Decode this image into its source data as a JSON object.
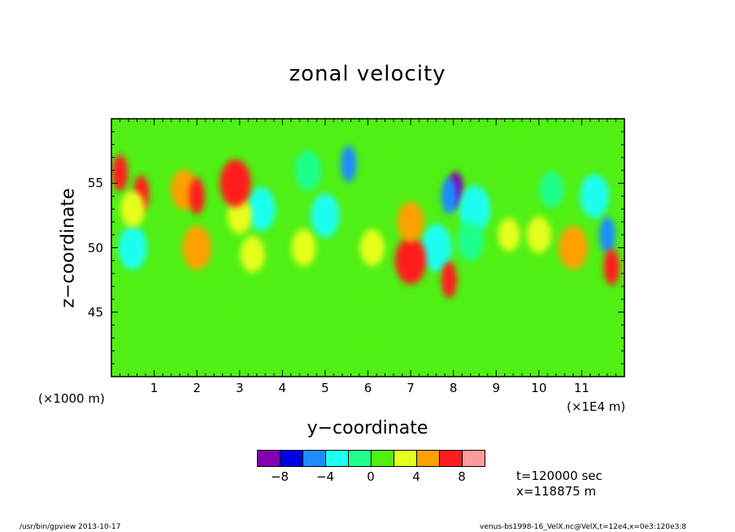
{
  "chart_data": {
    "type": "heatmap",
    "title": "zonal velocity",
    "xlabel": "y−coordinate",
    "ylabel": "z−coordinate",
    "x_unit_left": "(×1000 m)",
    "x_unit_right": "(×1E4 m)",
    "xlim": [
      0,
      12
    ],
    "ylim": [
      40,
      60
    ],
    "xticks": [
      "1",
      "2",
      "3",
      "4",
      "5",
      "6",
      "7",
      "8",
      "9",
      "10",
      "11"
    ],
    "yticks": [
      "45",
      "50",
      "55"
    ],
    "background_value": 1,
    "colorbar": {
      "levels": [
        -10,
        -8,
        -6,
        -4,
        -2,
        0,
        2,
        4,
        6,
        8,
        10
      ],
      "colors": [
        "#8000b0",
        "#0000e6",
        "#1e8cff",
        "#1efff0",
        "#1eff8c",
        "#50f014",
        "#e6ff1e",
        "#ffa000",
        "#ff1e1e",
        "#ff9b9b"
      ],
      "labels": [
        "−8",
        "−4",
        "0",
        "4",
        "8"
      ]
    },
    "features": [
      {
        "y": 5.55,
        "z": 56.5,
        "value": -6
      },
      {
        "y": 5.0,
        "z": 52.5,
        "value": -3
      },
      {
        "y": 3.5,
        "z": 53.0,
        "value": -3
      },
      {
        "y": 4.6,
        "z": 56.0,
        "value": -2
      },
      {
        "y": 8.05,
        "z": 54.5,
        "value": -9
      },
      {
        "y": 7.9,
        "z": 54.0,
        "value": -6
      },
      {
        "y": 8.5,
        "z": 53.0,
        "value": -4
      },
      {
        "y": 7.6,
        "z": 50.0,
        "value": -4
      },
      {
        "y": 8.4,
        "z": 50.5,
        "value": -2
      },
      {
        "y": 11.3,
        "z": 54.0,
        "value": -3
      },
      {
        "y": 11.6,
        "z": 51.0,
        "value": -5
      },
      {
        "y": 0.5,
        "z": 50.0,
        "value": -3
      },
      {
        "y": 1.7,
        "z": 54.5,
        "value": 4
      },
      {
        "y": 2.0,
        "z": 54.0,
        "value": 7
      },
      {
        "y": 0.2,
        "z": 55.8,
        "value": 7
      },
      {
        "y": 0.7,
        "z": 54.2,
        "value": 7
      },
      {
        "y": 0.5,
        "z": 53.0,
        "value": 3
      },
      {
        "y": 3.0,
        "z": 52.5,
        "value": 3
      },
      {
        "y": 3.3,
        "z": 49.5,
        "value": 3
      },
      {
        "y": 2.9,
        "z": 55.0,
        "value": 6
      },
      {
        "y": 2.0,
        "z": 50.0,
        "value": 5
      },
      {
        "y": 4.5,
        "z": 50.0,
        "value": 3
      },
      {
        "y": 6.1,
        "z": 50.0,
        "value": 3
      },
      {
        "y": 7.0,
        "z": 49.0,
        "value": 6
      },
      {
        "y": 7.0,
        "z": 52.0,
        "value": 4
      },
      {
        "y": 7.9,
        "z": 47.5,
        "value": 7
      },
      {
        "y": 10.0,
        "z": 51.0,
        "value": 3
      },
      {
        "y": 9.3,
        "z": 51.0,
        "value": 2
      },
      {
        "y": 10.8,
        "z": 50.0,
        "value": 5
      },
      {
        "y": 11.7,
        "z": 48.5,
        "value": 7
      },
      {
        "y": 9.5,
        "z": 57.0,
        "value": 0
      },
      {
        "y": 10.3,
        "z": 54.5,
        "value": -1
      },
      {
        "y": 6.0,
        "z": 44.5,
        "value": 0
      },
      {
        "y": 2.5,
        "z": 46.5,
        "value": 0
      },
      {
        "y": 6.5,
        "z": 58.5,
        "value": 0
      }
    ]
  },
  "info": {
    "time": "t=120000 sec",
    "xpos": "x=118875 m"
  },
  "footer": {
    "left": "/usr/bin/gpview   2013-10-17",
    "right": "venus-bs1998-16_VelX.nc@VelX,t=12e4,x=0e3:120e3:8"
  }
}
